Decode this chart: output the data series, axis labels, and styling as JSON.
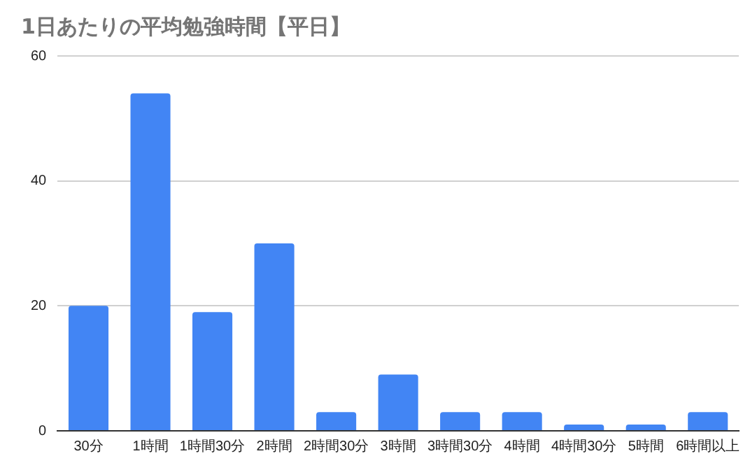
{
  "chart_data": {
    "type": "bar",
    "title": "1日あたりの平均勉強時間【平日】",
    "categories": [
      "30分",
      "1時間",
      "1時間30分",
      "2時間",
      "2時間30分",
      "3時間",
      "3時間30分",
      "4時間",
      "4時間30分",
      "5時間",
      "6時間以上"
    ],
    "values": [
      20,
      54,
      19,
      30,
      3,
      9,
      3,
      3,
      1,
      1,
      3
    ],
    "color": "#4285f4",
    "ylim": [
      0,
      60
    ],
    "yticks": [
      0,
      20,
      40,
      60
    ],
    "grid": "y",
    "legend": false
  }
}
